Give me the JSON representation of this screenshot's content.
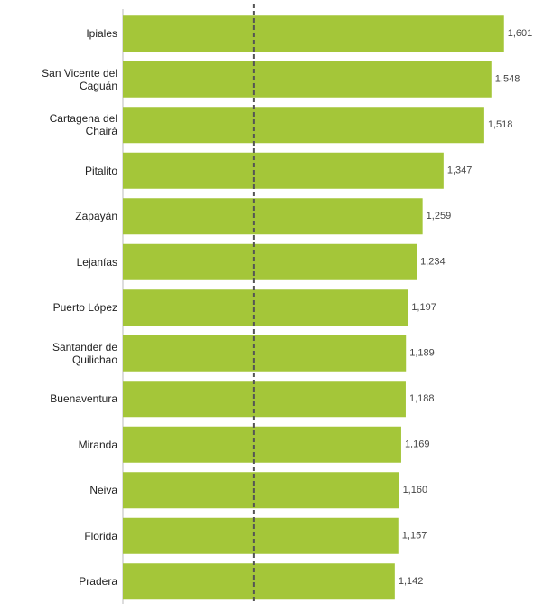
{
  "chart_data": {
    "type": "hbar",
    "categories": [
      "Ipiales",
      "San Vicente del Caguán",
      "Cartagena del Chairá",
      "Pitalito",
      "Zapayán",
      "Lejanías",
      "Puerto López",
      "Santander de Quilichao",
      "Buenaventura",
      "Miranda",
      "Neiva",
      "Florida",
      "Pradera"
    ],
    "values": [
      1601,
      1548,
      1518,
      1347,
      1259,
      1234,
      1197,
      1189,
      1188,
      1169,
      1160,
      1157,
      1142
    ],
    "value_labels": [
      "1,601",
      "1,548",
      "1,518",
      "1,347",
      "1,259",
      "1,234",
      "1,197",
      "1,189",
      "1,188",
      "1,169",
      "1,160",
      "1,157",
      "1,142"
    ],
    "color": "#a4c639",
    "xlim": [
      0,
      1750
    ],
    "reference_line": 550
  }
}
